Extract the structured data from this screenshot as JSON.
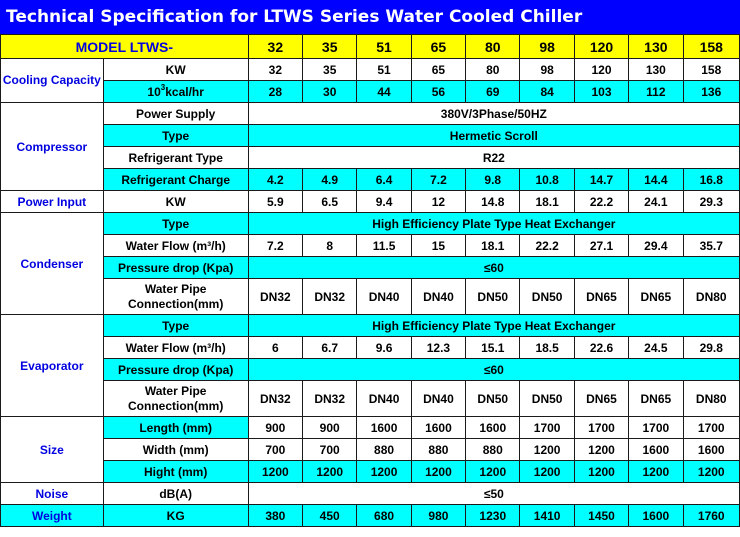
{
  "title": "Technical Specification for LTWS Series Water Cooled Chiller",
  "header": {
    "model_label": "MODEL LTWS-",
    "models": [
      "32",
      "35",
      "51",
      "65",
      "80",
      "98",
      "120",
      "130",
      "158"
    ]
  },
  "groups": {
    "cooling": "Cooling Capacity",
    "compressor": "Compressor",
    "power_input": "Power Input",
    "condenser": "Condenser",
    "evaporator": "Evaporator",
    "size": "Size",
    "noise": "Noise",
    "weight": "Weight"
  },
  "rows": {
    "cooling_kw": {
      "label": "KW",
      "values": [
        "32",
        "35",
        "51",
        "65",
        "80",
        "98",
        "120",
        "130",
        "158"
      ]
    },
    "cooling_kcal": {
      "label_pre": "10",
      "label_sup": "3",
      "label_post": "kcal/hr",
      "values": [
        "28",
        "30",
        "44",
        "56",
        "69",
        "84",
        "103",
        "112",
        "136"
      ]
    },
    "power_supply": {
      "label": "Power Supply",
      "value": "380V/3Phase/50HZ"
    },
    "comp_type": {
      "label": "Type",
      "value": "Hermetic Scroll"
    },
    "refrigerant_type": {
      "label": "Refrigerant Type",
      "value": "R22"
    },
    "refrigerant_charge": {
      "label": "Refrigerant Charge",
      "values": [
        "4.2",
        "4.9",
        "6.4",
        "7.2",
        "9.8",
        "10.8",
        "14.7",
        "14.4",
        "16.8"
      ]
    },
    "power_kw": {
      "label": "KW",
      "values": [
        "5.9",
        "6.5",
        "9.4",
        "12",
        "14.8",
        "18.1",
        "22.2",
        "24.1",
        "29.3"
      ]
    },
    "cond_type": {
      "label": "Type",
      "value": "High Efficiency Plate Type Heat Exchanger"
    },
    "cond_flow": {
      "label": "Water Flow (m³/h)",
      "values": [
        "7.2",
        "8",
        "11.5",
        "15",
        "18.1",
        "22.2",
        "27.1",
        "29.4",
        "35.7"
      ]
    },
    "cond_pressure": {
      "label": "Pressure drop (Kpa)",
      "value": "≤60"
    },
    "cond_pipe": {
      "label": "Water Pipe Connection(mm)",
      "values": [
        "DN32",
        "DN32",
        "DN40",
        "DN40",
        "DN50",
        "DN50",
        "DN65",
        "DN65",
        "DN80"
      ]
    },
    "evap_type": {
      "label": "Type",
      "value": "High Efficiency Plate Type Heat Exchanger"
    },
    "evap_flow": {
      "label": "Water Flow (m³/h)",
      "values": [
        "6",
        "6.7",
        "9.6",
        "12.3",
        "15.1",
        "18.5",
        "22.6",
        "24.5",
        "29.8"
      ]
    },
    "evap_pressure": {
      "label": "Pressure drop (Kpa)",
      "value": "≤60"
    },
    "evap_pipe": {
      "label": "Water Pipe Connection(mm)",
      "values": [
        "DN32",
        "DN32",
        "DN40",
        "DN40",
        "DN50",
        "DN50",
        "DN65",
        "DN65",
        "DN80"
      ]
    },
    "length": {
      "label": "Length (mm)",
      "values": [
        "900",
        "900",
        "1600",
        "1600",
        "1600",
        "1700",
        "1700",
        "1700",
        "1700"
      ]
    },
    "width": {
      "label": "Width (mm)",
      "values": [
        "700",
        "700",
        "880",
        "880",
        "880",
        "1200",
        "1200",
        "1600",
        "1600"
      ]
    },
    "height": {
      "label": "Hight (mm)",
      "values": [
        "1200",
        "1200",
        "1200",
        "1200",
        "1200",
        "1200",
        "1200",
        "1200",
        "1200"
      ]
    },
    "noise": {
      "label": "dB(A)",
      "value": "≤50"
    },
    "weight": {
      "label": "KG",
      "values": [
        "380",
        "450",
        "680",
        "980",
        "1230",
        "1410",
        "1450",
        "1600",
        "1760"
      ]
    }
  },
  "colors": {
    "title_bg": "#0000ff",
    "header_bg": "#ffff00",
    "highlight_bg": "#00ffff",
    "group_text": "#0000e0"
  }
}
